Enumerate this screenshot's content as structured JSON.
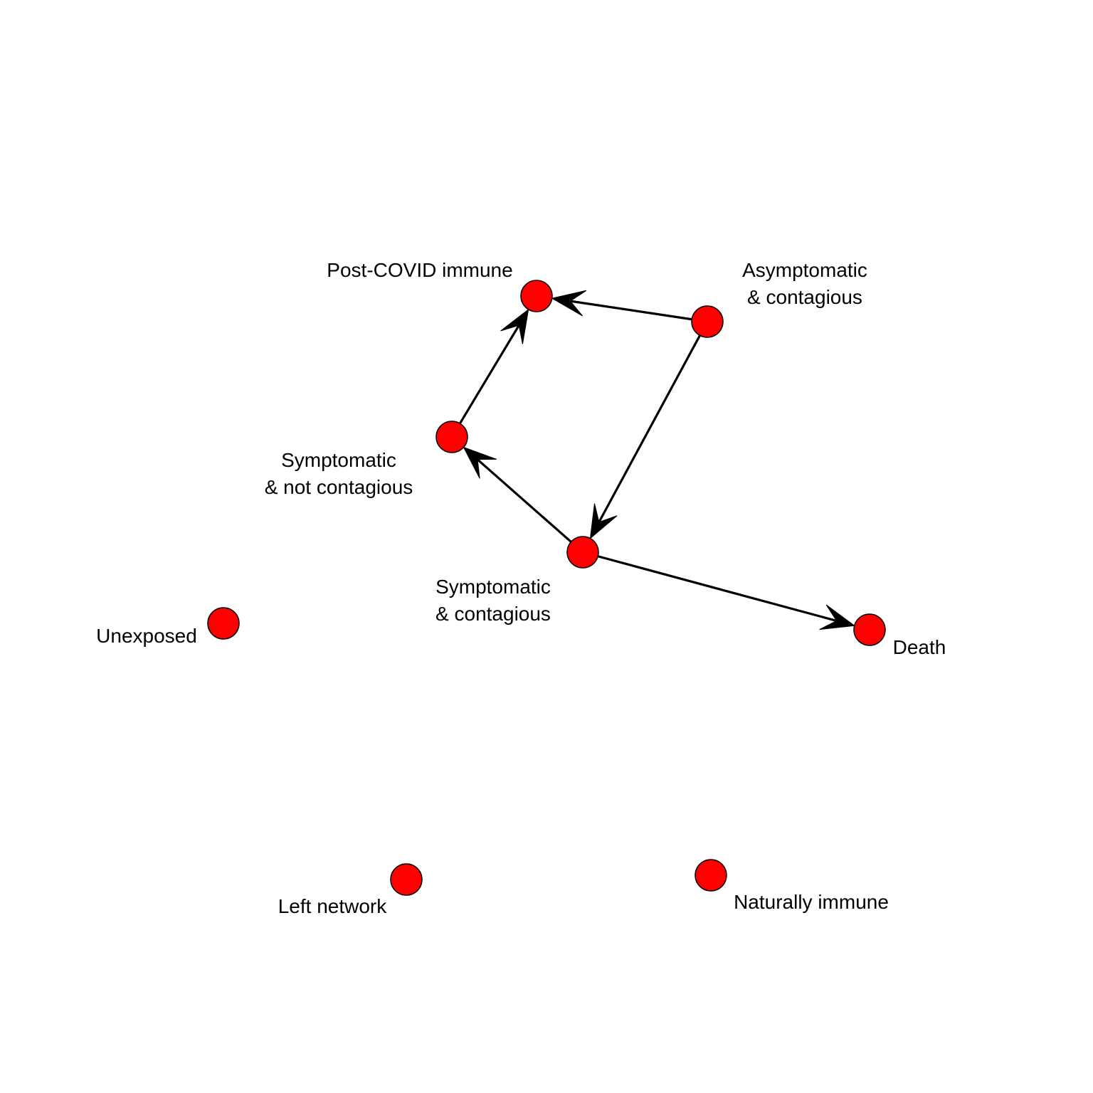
{
  "style": {
    "node_fill": "#ff0000",
    "node_stroke": "#000000",
    "edge_color": "#000000",
    "background": "#ffffff"
  },
  "nodes": [
    {
      "id": "post_covid_immune",
      "lines": [
        "Post-COVID immune"
      ]
    },
    {
      "id": "asymptomatic_contagious",
      "lines": [
        "Asymptomatic",
        "& contagious"
      ]
    },
    {
      "id": "symptomatic_not_contagious",
      "lines": [
        "Symptomatic",
        "& not contagious"
      ]
    },
    {
      "id": "symptomatic_contagious",
      "lines": [
        "Symptomatic",
        "& contagious"
      ]
    },
    {
      "id": "death",
      "lines": [
        "Death"
      ]
    },
    {
      "id": "unexposed",
      "lines": [
        "Unexposed"
      ]
    },
    {
      "id": "left_network",
      "lines": [
        "Left network"
      ]
    },
    {
      "id": "naturally_immune",
      "lines": [
        "Naturally immune"
      ]
    }
  ],
  "edges": [
    {
      "from": "asymptomatic_contagious",
      "to": "post_covid_immune"
    },
    {
      "from": "asymptomatic_contagious",
      "to": "symptomatic_contagious"
    },
    {
      "from": "symptomatic_contagious",
      "to": "symptomatic_not_contagious"
    },
    {
      "from": "symptomatic_not_contagious",
      "to": "post_covid_immune"
    },
    {
      "from": "symptomatic_contagious",
      "to": "death"
    }
  ]
}
